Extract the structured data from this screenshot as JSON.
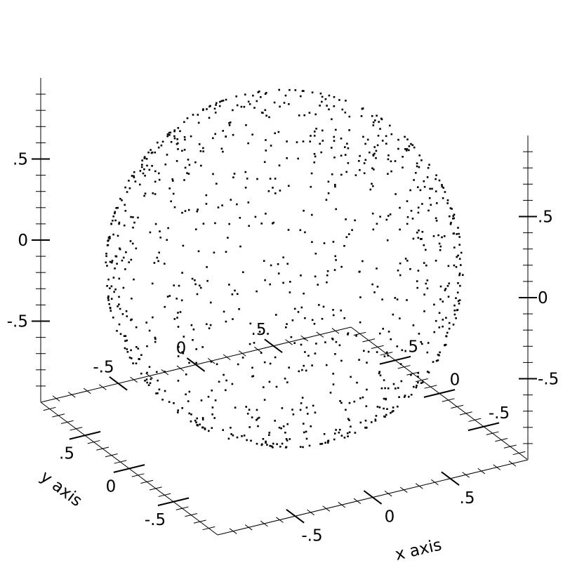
{
  "chart_data": {
    "type": "scatter",
    "projection": "3d",
    "title": "",
    "xlabel": "x axis",
    "ylabel": "y axis",
    "zlabel": "",
    "xlim": [
      -1,
      1
    ],
    "ylim": [
      -1,
      1
    ],
    "zlim": [
      -1,
      1
    ],
    "point_shape": "unit sphere surface",
    "point_distribution": "uniform random on sphere x^2+y^2+z^2=1",
    "point_count": 1000,
    "point_color": "#000000",
    "grid": false,
    "ticks": {
      "x": [
        {
          "value": -0.5,
          "label": "-.5"
        },
        {
          "value": 0,
          "label": "0"
        },
        {
          "value": 0.5,
          "label": ".5"
        }
      ],
      "y": [
        {
          "value": -0.5,
          "label": "-.5"
        },
        {
          "value": 0,
          "label": "0"
        },
        {
          "value": 0.5,
          "label": ".5"
        }
      ],
      "z": [
        {
          "value": -0.5,
          "label": "-.5"
        },
        {
          "value": 0,
          "label": "0"
        },
        {
          "value": 0.5,
          "label": ".5"
        }
      ]
    }
  }
}
